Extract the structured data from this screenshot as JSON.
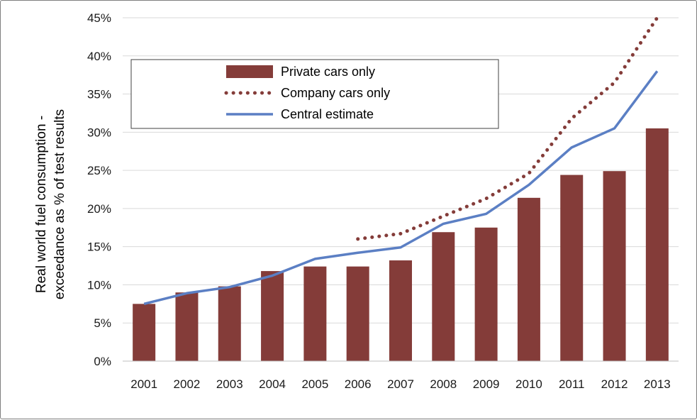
{
  "chart_data": {
    "type": "bar",
    "categories": [
      "2001",
      "2002",
      "2003",
      "2004",
      "2005",
      "2006",
      "2007",
      "2008",
      "2009",
      "2010",
      "2011",
      "2012",
      "2013"
    ],
    "ylabel_lines": [
      "Real world fuel consumption -",
      "exceedance as % of test results"
    ],
    "xlabel": "",
    "title": "",
    "ylim": [
      0,
      45
    ],
    "yticks": [
      0,
      5,
      10,
      15,
      20,
      25,
      30,
      35,
      40,
      45
    ],
    "ytick_labels": [
      "0%",
      "5%",
      "10%",
      "15%",
      "20%",
      "25%",
      "30%",
      "35%",
      "40%",
      "45%"
    ],
    "grid": true,
    "legend_position": "top-left",
    "series": [
      {
        "name": "Private cars only",
        "kind": "bar",
        "color": "#843c39",
        "values": [
          7.5,
          9.0,
          9.8,
          11.8,
          12.4,
          12.4,
          13.2,
          16.9,
          17.5,
          21.4,
          24.4,
          24.9,
          30.5
        ]
      },
      {
        "name": "Company cars only",
        "kind": "dotted-line",
        "color": "#843c39",
        "values": [
          null,
          null,
          null,
          null,
          null,
          16.0,
          16.7,
          19.0,
          21.3,
          24.6,
          31.8,
          36.5,
          45.0
        ]
      },
      {
        "name": "Central estimate",
        "kind": "line",
        "color": "#5b7fc4",
        "values": [
          7.5,
          8.9,
          9.7,
          11.2,
          13.4,
          14.2,
          14.9,
          18.0,
          19.3,
          23.1,
          28.0,
          30.5,
          38.0
        ]
      }
    ]
  }
}
